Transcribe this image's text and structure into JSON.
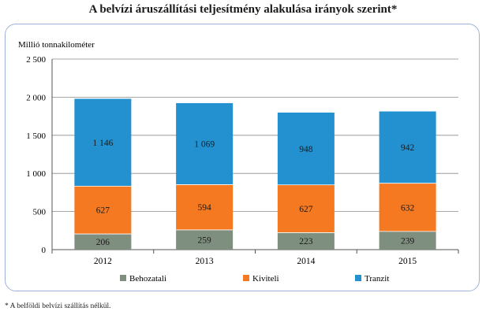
{
  "chart_data": {
    "type": "bar",
    "stacked": true,
    "title": "A belvízi áruszállítási teljesítmény alakulása irányok szerint*",
    "ylabel": "Millió tonnakilométer",
    "xlabel": "",
    "categories": [
      "2012",
      "2013",
      "2014",
      "2015"
    ],
    "ylim": [
      0,
      2500
    ],
    "yticks": [
      0,
      500,
      1000,
      1500,
      2000,
      2500
    ],
    "ytick_labels": [
      "0",
      "500",
      "1 000",
      "1 500",
      "2 000",
      "2 500"
    ],
    "grid": true,
    "legend_position": "bottom",
    "series": [
      {
        "name": "Behozatali",
        "values": [
          206,
          259,
          223,
          239
        ],
        "labels": [
          "206",
          "259",
          "223",
          "239"
        ],
        "color": "#7f8f7f"
      },
      {
        "name": "Kiviteli",
        "values": [
          627,
          594,
          627,
          632
        ],
        "labels": [
          "627",
          "594",
          "627",
          "632"
        ],
        "color": "#f47920"
      },
      {
        "name": "Tranzit",
        "values": [
          1146,
          1069,
          948,
          942
        ],
        "labels": [
          "1 146",
          "1 069",
          "948",
          "942"
        ],
        "color": "#2391d0"
      }
    ]
  },
  "footnote": "* A belföldi belvízi szállítás nélkül."
}
